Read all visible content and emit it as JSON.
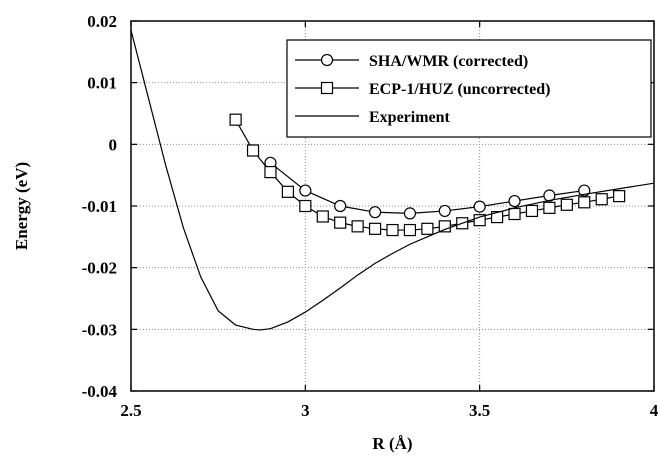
{
  "chart_data": {
    "type": "line",
    "xlabel": "R (Å)",
    "ylabel": "Energy (eV)",
    "xlim": [
      2.5,
      4.0
    ],
    "ylim": [
      -0.04,
      0.02
    ],
    "x_ticks": [
      2.5,
      3.0,
      3.5,
      4.0
    ],
    "x_tick_labels": [
      "2.5",
      "3",
      "3.5",
      "4"
    ],
    "y_ticks": [
      0.02,
      0.01,
      0.0,
      -0.01,
      -0.02,
      -0.03,
      -0.04
    ],
    "y_tick_labels": [
      "0.02",
      "0.01",
      "0",
      "-0.01",
      "-0.02",
      "-0.03",
      "-0.04"
    ],
    "grid": true,
    "legend_position": "top-right",
    "series": [
      {
        "name": "SHA/WMR (corrected)",
        "marker": "circle",
        "x": [
          2.9,
          3.0,
          3.1,
          3.2,
          3.3,
          3.4,
          3.5,
          3.6,
          3.7,
          3.8
        ],
        "y": [
          -0.003,
          -0.0075,
          -0.01,
          -0.011,
          -0.0112,
          -0.0108,
          -0.0101,
          -0.0092,
          -0.0083,
          -0.0075
        ]
      },
      {
        "name": "ECP-1/HUZ (uncorrected)",
        "marker": "square",
        "x": [
          2.8,
          2.85,
          2.9,
          2.95,
          3.0,
          3.05,
          3.1,
          3.15,
          3.2,
          3.25,
          3.3,
          3.35,
          3.4,
          3.45,
          3.5,
          3.55,
          3.6,
          3.65,
          3.7,
          3.75,
          3.8,
          3.85,
          3.9
        ],
        "y": [
          0.004,
          -0.001,
          -0.0045,
          -0.0077,
          -0.01,
          -0.0117,
          -0.0127,
          -0.0133,
          -0.0137,
          -0.0139,
          -0.0139,
          -0.0137,
          -0.0133,
          -0.0128,
          -0.0123,
          -0.0118,
          -0.0113,
          -0.0108,
          -0.0103,
          -0.0098,
          -0.0094,
          -0.0089,
          -0.0084
        ]
      },
      {
        "name": "Experiment",
        "marker": "none",
        "x": [
          2.5,
          2.55,
          2.6,
          2.65,
          2.7,
          2.75,
          2.8,
          2.85,
          2.87,
          2.9,
          2.95,
          3.0,
          3.05,
          3.1,
          3.15,
          3.2,
          3.25,
          3.3,
          3.35,
          3.4,
          3.5,
          3.6,
          3.7,
          3.8,
          3.9,
          4.0
        ],
        "y": [
          0.0185,
          0.0075,
          -0.0035,
          -0.0135,
          -0.0215,
          -0.027,
          -0.0293,
          -0.03,
          -0.0301,
          -0.0299,
          -0.0288,
          -0.0272,
          -0.0253,
          -0.0233,
          -0.0212,
          -0.0193,
          -0.0177,
          -0.0162,
          -0.015,
          -0.0138,
          -0.0118,
          -0.0103,
          -0.0091,
          -0.0081,
          -0.0072,
          -0.0063
        ]
      }
    ]
  }
}
